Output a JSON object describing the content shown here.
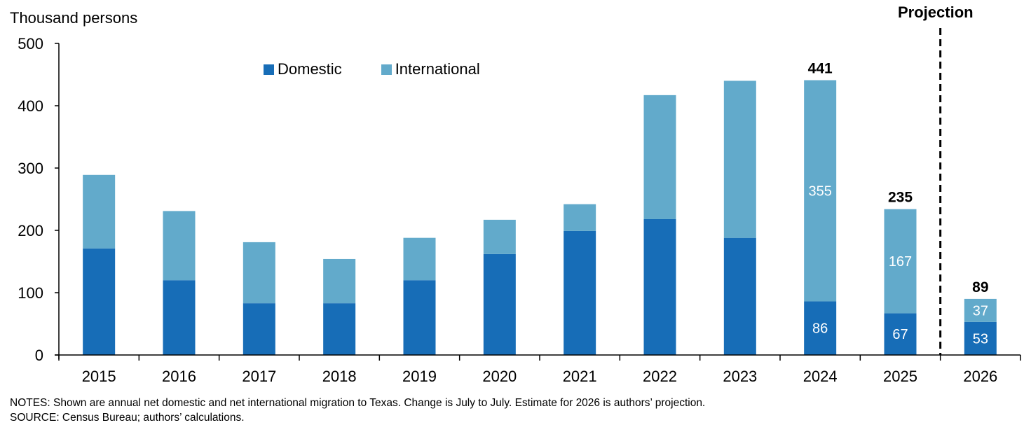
{
  "chart_data": {
    "type": "bar",
    "stacked": true,
    "title": "",
    "ylabel": "Thousand persons",
    "xlabel": "",
    "ylim": [
      0,
      500
    ],
    "yticks": [
      0,
      100,
      200,
      300,
      400,
      500
    ],
    "grid": false,
    "legend_position": "top-left",
    "categories": [
      "2015",
      "2016",
      "2017",
      "2018",
      "2019",
      "2020",
      "2021",
      "2022",
      "2023",
      "2024",
      "2025",
      "2026"
    ],
    "series": [
      {
        "name": "Domestic",
        "color": "#176db7",
        "values": [
          171,
          120,
          83,
          83,
          120,
          162,
          199,
          218,
          188,
          86,
          67,
          53
        ]
      },
      {
        "name": "International",
        "color": "#62aacb",
        "values": [
          118,
          111,
          98,
          71,
          68,
          55,
          43,
          199,
          252,
          355,
          167,
          37
        ]
      }
    ],
    "segment_labels": {
      "2024": {
        "Domestic": "86",
        "International": "355"
      },
      "2025": {
        "Domestic": "67",
        "International": "167"
      },
      "2026": {
        "Domestic": "53",
        "International": "37"
      }
    },
    "total_labels": {
      "2024": "441",
      "2025": "235",
      "2026": "89"
    },
    "projection_divider_after": "2025",
    "annotations": [
      "Projection"
    ]
  },
  "legend": {
    "items": [
      {
        "label": "Domestic",
        "color": "#176db7"
      },
      {
        "label": "International",
        "color": "#62aacb"
      }
    ]
  },
  "projection_label": "Projection",
  "notes": {
    "notes_line": "NOTES: Shown are annual net domestic and net international migration to Texas. Change is July to July. Estimate for 2026 is authors’ projection.",
    "source_line": "SOURCE: Census Bureau; authors’ calculations."
  }
}
